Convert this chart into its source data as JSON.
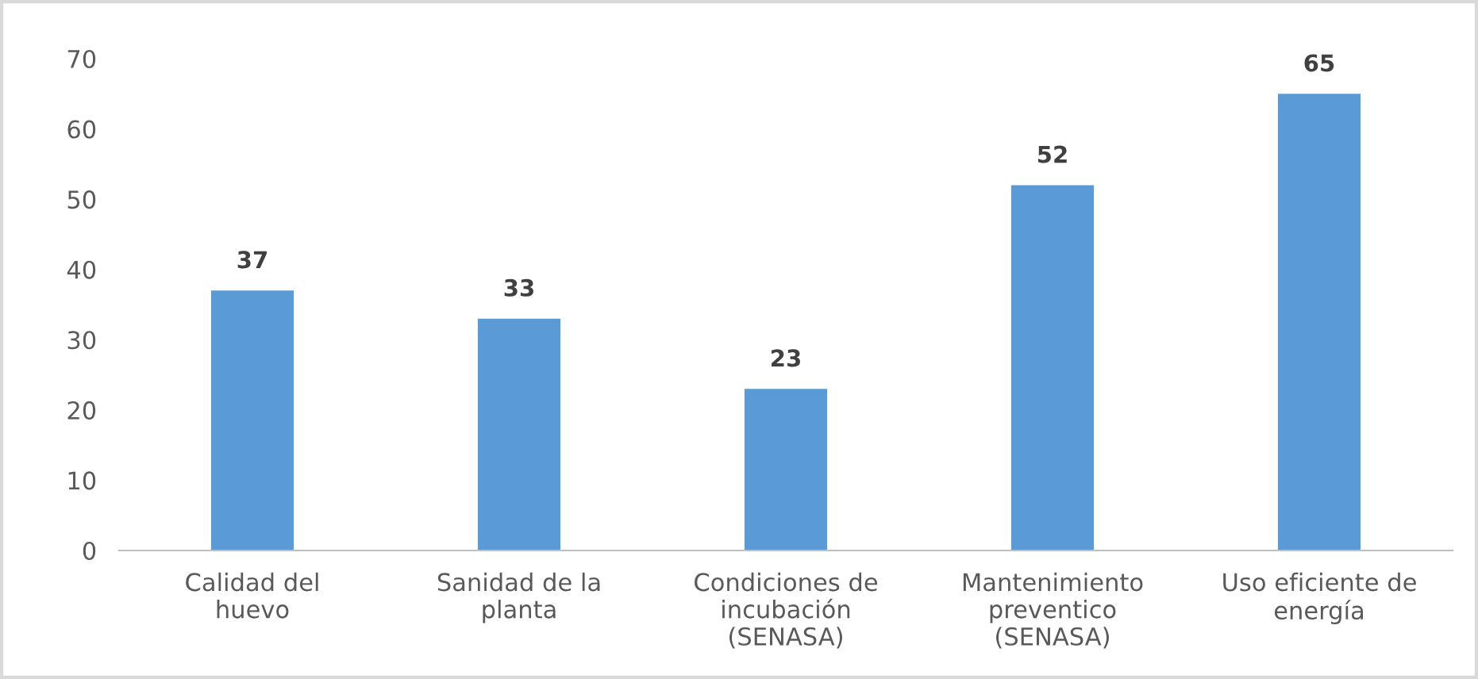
{
  "chart_data": {
    "type": "bar",
    "categories": [
      "Calidad del\nhuevo",
      "Sanidad de la\nplanta",
      "Condiciones de\nincubación\n(SENASA)",
      "Mantenimiento\npreventico\n(SENASA)",
      "Uso eficiente de\nenergía"
    ],
    "values": [
      37,
      33,
      23,
      52,
      65
    ],
    "color": "#5b9bd5",
    "ylim": [
      0,
      70
    ],
    "yticks": [
      0,
      10,
      20,
      30,
      40,
      50,
      60,
      70
    ],
    "data_labels": true,
    "grid": false,
    "legend": false
  }
}
